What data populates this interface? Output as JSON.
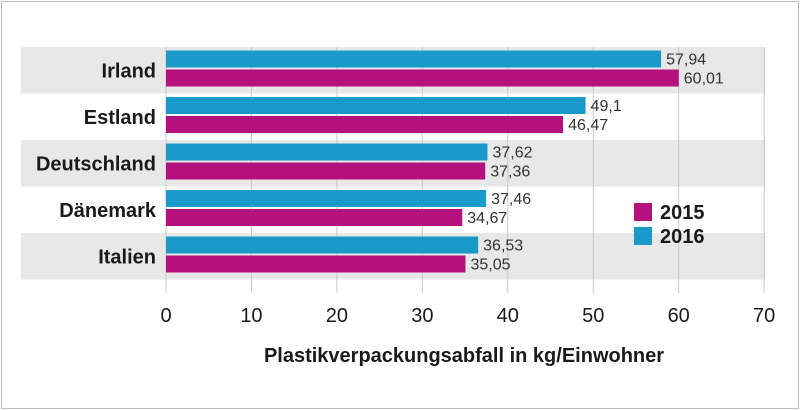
{
  "chart_data": {
    "type": "bar",
    "orientation": "horizontal",
    "title": "",
    "xlabel": "Plastikverpackungsabfall in kg/Einwohner",
    "ylabel": "",
    "xlim": [
      0,
      70
    ],
    "xticks": [
      "0",
      "10",
      "20",
      "30",
      "40",
      "50",
      "60",
      "70"
    ],
    "grid": true,
    "legend_position": "right",
    "categories": [
      "Irland",
      "Estland",
      "Deutschland",
      "Dänemark",
      "Italien"
    ],
    "series": [
      {
        "name": "2016",
        "color": "#1a9ac9",
        "values": [
          57.94,
          49.1,
          37.62,
          37.46,
          36.53
        ],
        "labels": [
          "57,94",
          "49,1",
          "37,62",
          "37,46",
          "36,53"
        ]
      },
      {
        "name": "2015",
        "color": "#b5117d",
        "values": [
          60.01,
          46.47,
          37.36,
          34.67,
          35.05
        ],
        "labels": [
          "60,01",
          "46,47",
          "37,36",
          "34,67",
          "35,05"
        ]
      }
    ],
    "legend_order": [
      "2015",
      "2016"
    ],
    "band_color": "#e8e8e8",
    "grid_color": "#c8c8c8"
  }
}
